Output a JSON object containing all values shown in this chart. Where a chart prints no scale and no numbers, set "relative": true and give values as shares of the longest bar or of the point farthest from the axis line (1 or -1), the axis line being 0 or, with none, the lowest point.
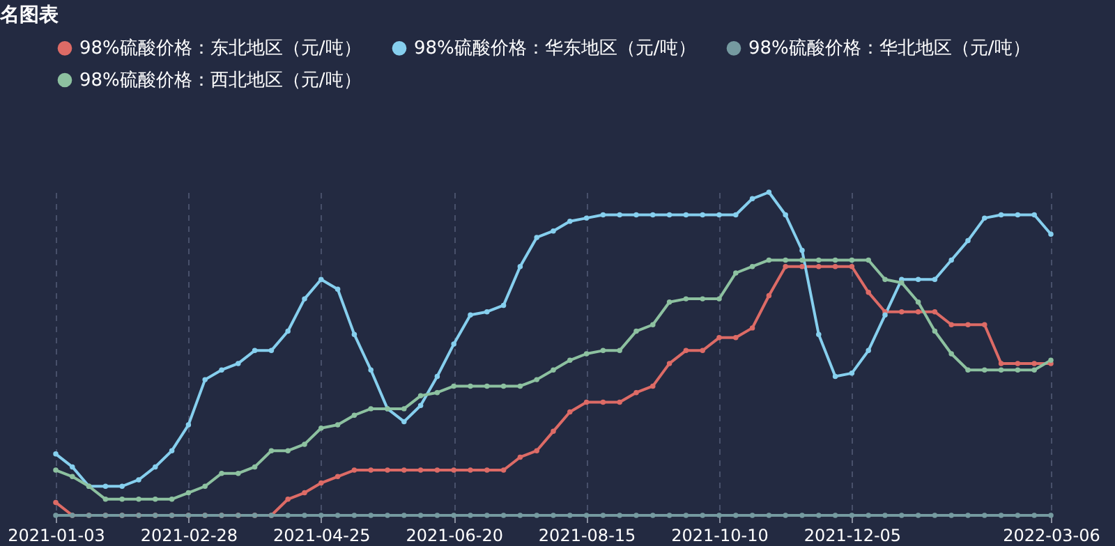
{
  "chart_data": {
    "type": "line",
    "title": "名图表",
    "relative": true,
    "grid": "x",
    "marker": "circle",
    "line_style": "solid",
    "legend": "top",
    "categories": [
      "2021-01-03",
      null,
      null,
      null,
      null,
      null,
      null,
      null,
      "2021-02-28",
      null,
      null,
      null,
      null,
      null,
      null,
      null,
      "2021-04-25",
      null,
      null,
      null,
      null,
      null,
      null,
      null,
      "2021-06-20",
      null,
      null,
      null,
      null,
      null,
      null,
      null,
      "2021-08-15",
      null,
      null,
      null,
      null,
      null,
      null,
      null,
      "2021-10-10",
      null,
      null,
      null,
      null,
      null,
      null,
      null,
      "2021-12-05",
      null,
      null,
      null,
      null,
      null,
      null,
      null,
      null,
      null,
      null,
      null,
      "2022-03-06"
    ],
    "series": [
      {
        "name": "98%硫酸价格：东北地区（元/吨）",
        "color": "#dd6b66",
        "values": [
          0.04,
          0,
          0,
          0,
          0,
          0,
          0,
          0,
          0,
          0,
          0,
          0,
          0,
          0,
          0.05,
          0.07,
          0.1,
          0.12,
          0.14,
          0.14,
          0.14,
          0.14,
          0.14,
          0.14,
          0.14,
          0.14,
          0.14,
          0.14,
          0.18,
          0.2,
          0.26,
          0.32,
          0.35,
          0.35,
          0.35,
          0.38,
          0.4,
          0.47,
          0.51,
          0.51,
          0.55,
          0.55,
          0.58,
          0.68,
          0.77,
          0.77,
          0.77,
          0.77,
          0.77,
          0.69,
          0.63,
          0.63,
          0.63,
          0.63,
          0.59,
          0.59,
          0.59,
          0.47,
          0.47,
          0.47,
          0.47
        ]
      },
      {
        "name": "98%硫酸价格：华北地区（元/吨）",
        "color": "#759aa0",
        "values": [
          0,
          0,
          0,
          0,
          0,
          0,
          0,
          0,
          0,
          0,
          0,
          0,
          0,
          0,
          0,
          0,
          0,
          0,
          0,
          0,
          0,
          0,
          0,
          0,
          0,
          0,
          0,
          0,
          0,
          0,
          0,
          0,
          0,
          0,
          0,
          0,
          0,
          0,
          0,
          0,
          0,
          0,
          0,
          0,
          0,
          0,
          0,
          0,
          0,
          0,
          0,
          0,
          0,
          0,
          0,
          0,
          0,
          0,
          0,
          0,
          0
        ]
      },
      {
        "name": "98%硫酸价格：华东地区（元/吨）",
        "color": "#86cfee",
        "values": [
          0.19,
          0.15,
          0.09,
          0.09,
          0.09,
          0.11,
          0.15,
          0.2,
          0.28,
          0.42,
          0.45,
          0.47,
          0.51,
          0.51,
          0.57,
          0.67,
          0.73,
          0.7,
          0.56,
          0.45,
          0.33,
          0.29,
          0.34,
          0.43,
          0.53,
          0.62,
          0.63,
          0.65,
          0.77,
          0.86,
          0.88,
          0.91,
          0.92,
          0.93,
          0.93,
          0.93,
          0.93,
          0.93,
          0.93,
          0.93,
          0.93,
          0.93,
          0.98,
          1.0,
          0.93,
          0.82,
          0.56,
          0.43,
          0.44,
          0.51,
          0.62,
          0.73,
          0.73,
          0.73,
          0.79,
          0.85,
          0.92,
          0.93,
          0.93,
          0.93,
          0.87
        ]
      },
      {
        "name": "98%硫酸价格：西北地区（元/吨）",
        "color": "#8dc1a0",
        "values": [
          0.14,
          0.12,
          0.09,
          0.05,
          0.05,
          0.05,
          0.05,
          0.05,
          0.07,
          0.09,
          0.13,
          0.13,
          0.15,
          0.2,
          0.2,
          0.22,
          0.27,
          0.28,
          0.31,
          0.33,
          0.33,
          0.33,
          0.37,
          0.38,
          0.4,
          0.4,
          0.4,
          0.4,
          0.4,
          0.42,
          0.45,
          0.48,
          0.5,
          0.51,
          0.51,
          0.57,
          0.59,
          0.66,
          0.67,
          0.67,
          0.67,
          0.75,
          0.77,
          0.79,
          0.79,
          0.79,
          0.79,
          0.79,
          0.79,
          0.79,
          0.73,
          0.72,
          0.66,
          0.57,
          0.5,
          0.45,
          0.45,
          0.45,
          0.45,
          0.45,
          0.48
        ]
      }
    ]
  }
}
